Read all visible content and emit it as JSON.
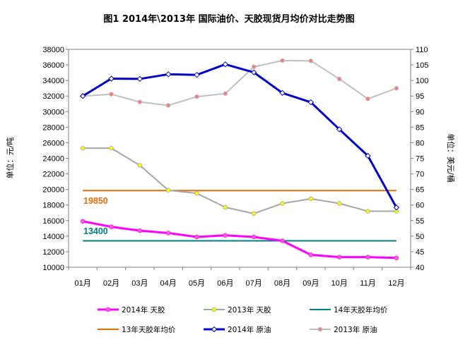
{
  "chart_data": {
    "type": "line",
    "title": "图1 2014年\\2013年 国际油价、天胶现货月均价对比走势图",
    "categories": [
      "01月",
      "02月",
      "03月",
      "04月",
      "05月",
      "06月",
      "07月",
      "08月",
      "09月",
      "10月",
      "11月",
      "12月"
    ],
    "y_left": {
      "label": "单位：元/吨",
      "range": [
        10000,
        38000
      ],
      "ticks": [
        10000,
        12000,
        14000,
        16000,
        18000,
        20000,
        22000,
        24000,
        26000,
        28000,
        30000,
        32000,
        34000,
        36000,
        38000
      ]
    },
    "y_right": {
      "label": "单位：美元/桶",
      "range": [
        40,
        110
      ],
      "ticks": [
        40,
        45,
        50,
        55,
        60,
        65,
        70,
        75,
        80,
        85,
        90,
        95,
        100,
        105,
        110
      ]
    },
    "series": [
      {
        "name": "2014年 天胶",
        "axis": "left",
        "color": "#FF00FF",
        "marker": "#FF66CC",
        "values": [
          15900,
          15200,
          14700,
          14400,
          13900,
          14100,
          13900,
          13400,
          11600,
          11300,
          11300,
          11200
        ]
      },
      {
        "name": "2013年 天胶",
        "axis": "left",
        "color": "#A6A6A6",
        "marker": "#FFFF00",
        "values": [
          25300,
          25300,
          23100,
          19900,
          19500,
          17700,
          16900,
          18200,
          18800,
          18200,
          17200,
          17200
        ]
      },
      {
        "name": "14年天胶年均价",
        "axis": "left",
        "color": "#008080",
        "constant": 13400
      },
      {
        "name": "13年天胶年均价",
        "axis": "left",
        "color": "#E46C0A",
        "constant": 19850
      },
      {
        "name": "2014年 原油",
        "axis": "right",
        "color": "#0000CC",
        "marker": "#FFFFFF",
        "values": [
          95.0,
          100.6,
          100.5,
          102.0,
          101.8,
          105.2,
          102.6,
          96.0,
          93.0,
          84.3,
          75.8,
          59.2
        ]
      },
      {
        "name": "2013年 原油",
        "axis": "right",
        "color": "#BFBFBF",
        "marker": "#F08080",
        "values": [
          95.0,
          95.6,
          93.1,
          92.0,
          94.8,
          95.8,
          104.4,
          106.4,
          106.3,
          100.5,
          94.1,
          97.5
        ]
      }
    ],
    "annotations": [
      {
        "text": "19850",
        "color": "#E46C0A",
        "value": 19850
      },
      {
        "text": "13400",
        "color": "#008080",
        "value": 13400
      }
    ],
    "legend": {
      "placement": "bottom",
      "items": [
        "2014年 天胶",
        "2013年 天胶",
        "14年天胶年均价",
        "13年天胶年均价",
        "2014年 原油",
        "2013年 原油"
      ]
    },
    "grid": false
  }
}
